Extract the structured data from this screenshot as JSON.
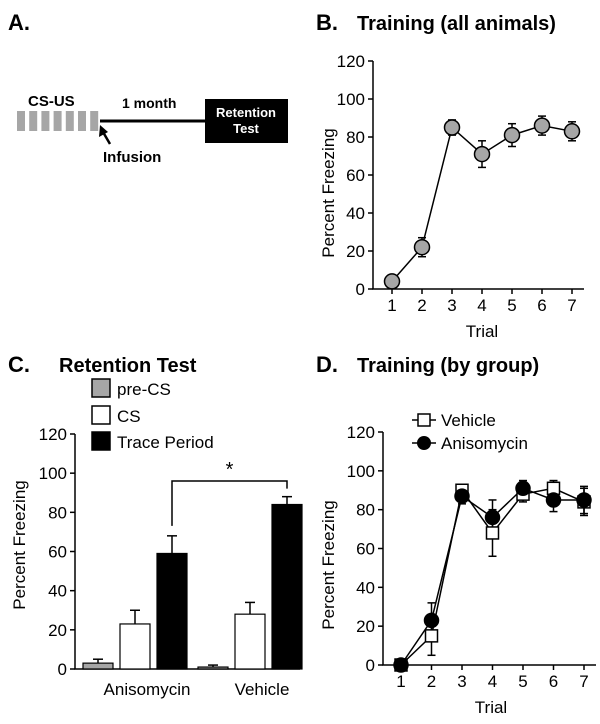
{
  "panel_a": {
    "letter": "A.",
    "cs_us_label": "CS-US",
    "duration_label": "1 month",
    "infusion_label": "Infusion",
    "retention_line1": "Retention",
    "retention_line2": "Test",
    "tone_count": 7,
    "tone_color": "#a6a6a6"
  },
  "colors": {
    "gray": "#a6a6a6",
    "black": "#000000",
    "white": "#ffffff"
  },
  "chart_data": [
    {
      "panel": "B.",
      "type": "line",
      "title": "Training (all animals)",
      "xlabel": "Trial",
      "ylabel": "Percent Freezing",
      "x": [
        1,
        2,
        3,
        4,
        5,
        6,
        7
      ],
      "ylim": [
        0,
        120
      ],
      "yticks": [
        0,
        20,
        40,
        60,
        80,
        100,
        120
      ],
      "grid": false,
      "series": [
        {
          "marker": "circle",
          "fill": "#a6a6a6",
          "values": [
            4,
            22,
            85,
            71,
            81,
            86,
            83
          ],
          "errors": [
            2,
            5,
            4,
            7,
            6,
            5,
            5
          ]
        }
      ]
    },
    {
      "panel": "C.",
      "type": "bar",
      "title": "Retention Test",
      "ylabel": "Percent Freezing",
      "categories": [
        "Anisomycin",
        "Vehicle"
      ],
      "ylim": [
        0,
        120
      ],
      "yticks": [
        0,
        20,
        40,
        60,
        80,
        100,
        120
      ],
      "legend_placement": "top",
      "series": [
        {
          "name": "pre-CS",
          "color": "#a6a6a6",
          "values": [
            3,
            1
          ],
          "errors": [
            2,
            1
          ]
        },
        {
          "name": "CS",
          "color": "#ffffff",
          "values": [
            23,
            28
          ],
          "errors": [
            7,
            6
          ]
        },
        {
          "name": "Trace Period",
          "color": "#000000",
          "values": [
            59,
            84
          ],
          "errors": [
            9,
            4
          ]
        }
      ],
      "annotation": "*"
    },
    {
      "panel": "D.",
      "type": "line",
      "title": "Training (by group)",
      "xlabel": "Trial",
      "ylabel": "Percent Freezing",
      "x": [
        1,
        2,
        3,
        4,
        5,
        6,
        7
      ],
      "ylim": [
        0,
        120
      ],
      "yticks": [
        0,
        20,
        40,
        60,
        80,
        100,
        120
      ],
      "grid": false,
      "legend_placement": "top-left",
      "series": [
        {
          "name": "Vehicle",
          "marker": "square",
          "fill": "#ffffff",
          "values": [
            0,
            15,
            90,
            68,
            88,
            91,
            84
          ],
          "errors": [
            1,
            10,
            3,
            12,
            4,
            4,
            7
          ]
        },
        {
          "name": "Anisomycin",
          "marker": "circle",
          "fill": "#000000",
          "values": [
            0,
            23,
            87,
            76,
            91,
            85,
            85
          ],
          "errors": [
            1,
            9,
            4,
            9,
            4,
            6,
            7
          ]
        }
      ]
    }
  ]
}
